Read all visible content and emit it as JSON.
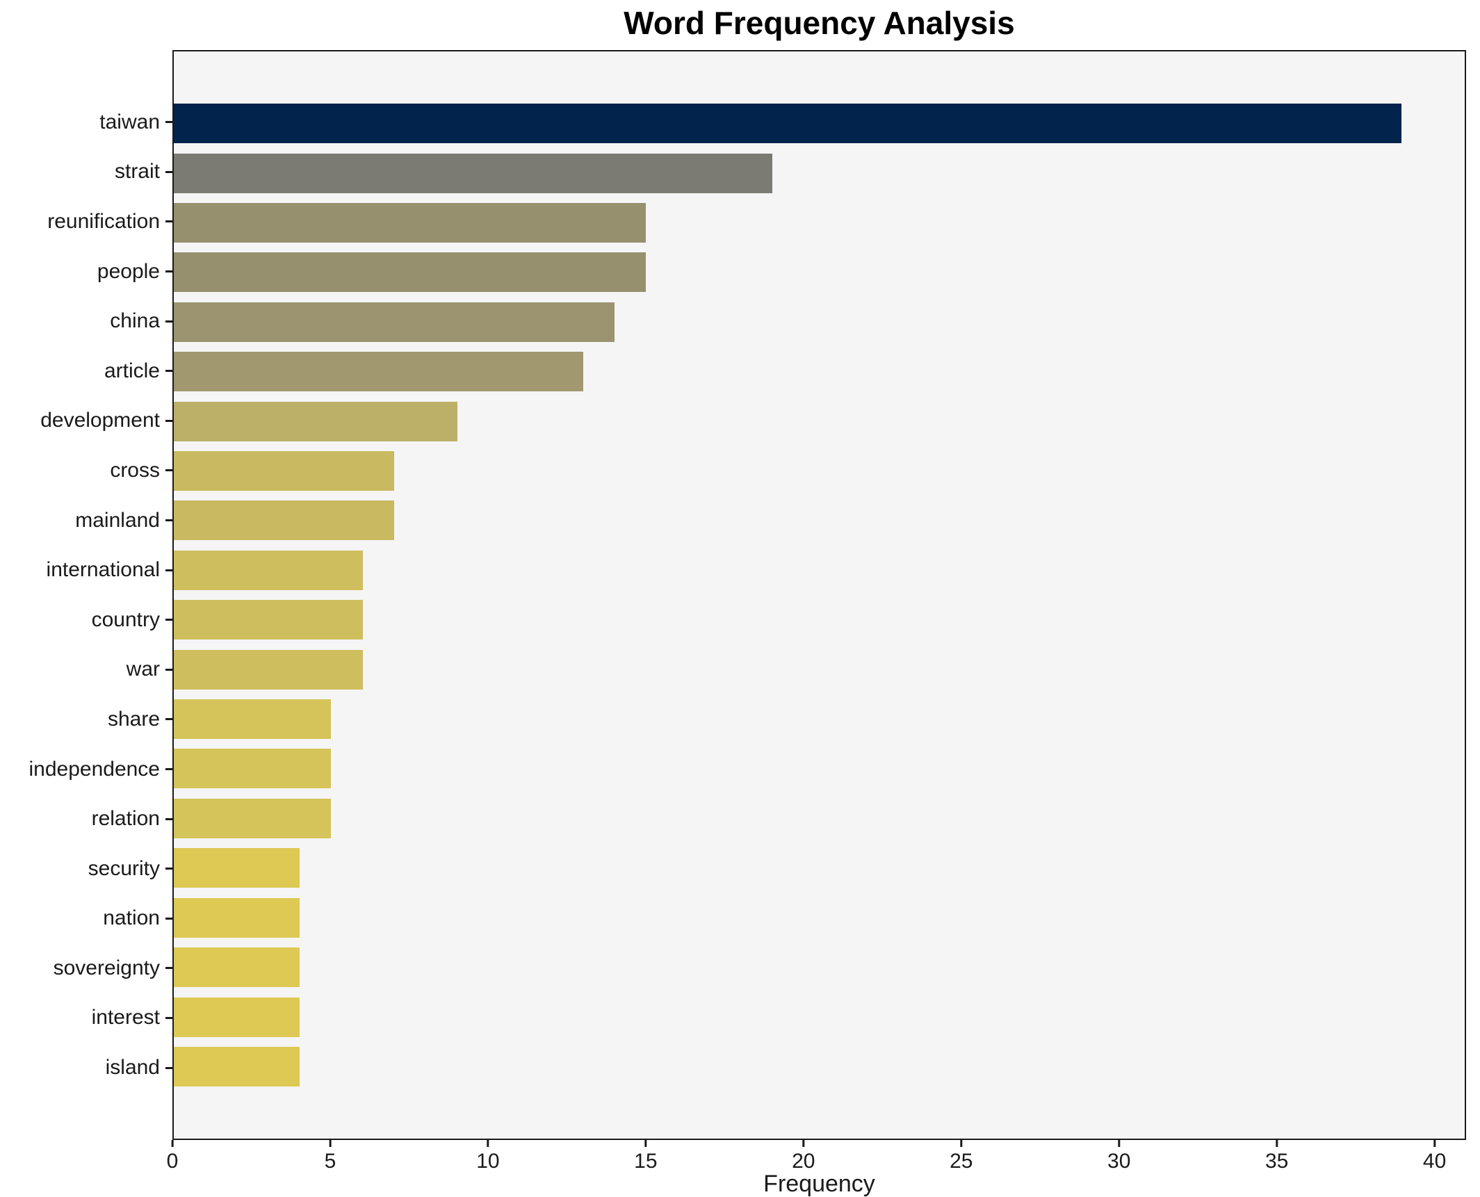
{
  "chart_data": {
    "type": "bar",
    "orientation": "horizontal",
    "title": "Word Frequency Analysis",
    "xlabel": "Frequency",
    "ylabel": "",
    "categories": [
      "taiwan",
      "strait",
      "reunification",
      "people",
      "china",
      "article",
      "development",
      "cross",
      "mainland",
      "international",
      "country",
      "war",
      "share",
      "independence",
      "relation",
      "security",
      "nation",
      "sovereignty",
      "interest",
      "island"
    ],
    "values": [
      39,
      19,
      15,
      15,
      14,
      13,
      9,
      7,
      7,
      6,
      6,
      6,
      5,
      5,
      5,
      4,
      4,
      4,
      4,
      4
    ],
    "bar_colors": [
      "#02234c",
      "#7c7b72",
      "#96906f",
      "#96906f",
      "#9c9471",
      "#a19870",
      "#bcaf67",
      "#c9b961",
      "#c9b961",
      "#cfbe5e",
      "#cfbe5e",
      "#cfbe5e",
      "#d5c45a",
      "#d5c45a",
      "#d5c45a",
      "#ddc954",
      "#ddc954",
      "#ddc954",
      "#ddc954",
      "#ddc954"
    ],
    "x_ticks": [
      0,
      5,
      10,
      15,
      20,
      25,
      30,
      35,
      40
    ],
    "xlim": [
      0,
      41
    ],
    "grid": false,
    "legend": null,
    "plot_background": "#f5f5f6",
    "spine_color": "#1a1a1a"
  }
}
